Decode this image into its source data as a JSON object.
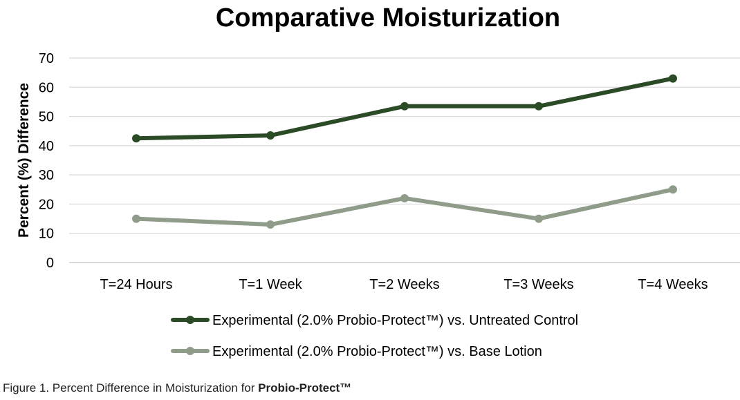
{
  "chart_data": {
    "type": "line",
    "title": "Comparative Moisturization",
    "xlabel": "",
    "ylabel": "Percent (%) Difference",
    "categories": [
      "T=24 Hours",
      "T=1 Week",
      "T=2 Weeks",
      "T=3 Weeks",
      "T=4 Weeks"
    ],
    "ylim": [
      0,
      70
    ],
    "yticks": [
      0,
      10,
      20,
      30,
      40,
      50,
      60,
      70
    ],
    "grid": true,
    "legend_position": "bottom",
    "series": [
      {
        "name": "Experimental (2.0% Probio-Protect™) vs. Untreated Control",
        "values": [
          42.5,
          43.5,
          53.5,
          53.5,
          63
        ],
        "color": "#2b4a26"
      },
      {
        "name": "Experimental (2.0% Probio-Protect™) vs. Base Lotion",
        "values": [
          15,
          13,
          22,
          15,
          25
        ],
        "color": "#8f9c8a"
      }
    ]
  },
  "caption": {
    "prefix": "Figure 1.  Percent Difference in Moisturization  for ",
    "product": "Probio-Protect™"
  }
}
